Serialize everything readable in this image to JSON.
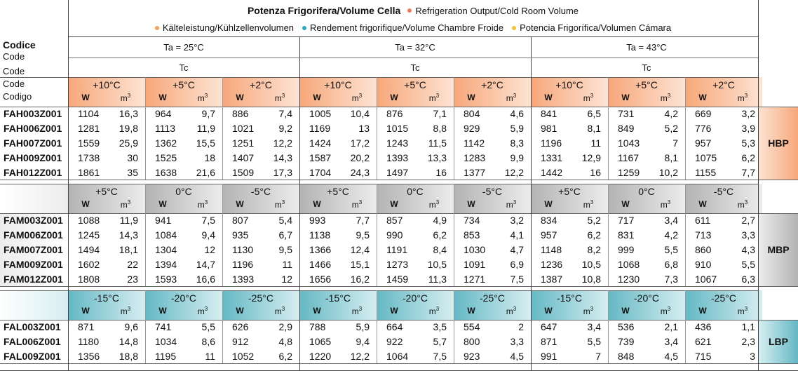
{
  "header": {
    "title": "Potenza Frigorifera/Volume Cella",
    "legend": [
      {
        "text": "Refrigeration Output/Cold Room Volume",
        "color": "#f07a5a"
      },
      {
        "text": "Kälteleistung/Kühlzellenvolumen",
        "color": "#f5a05a"
      },
      {
        "text": "Rendement frigorifique/Volume Chambre Froide",
        "color": "#2aa6c4"
      },
      {
        "text": "Potencia Frigorífica/Volumen Cámara",
        "color": "#f2c23a"
      }
    ],
    "code_labels": [
      "Codice",
      "Code",
      "Code",
      "Code",
      "Codigo"
    ],
    "ambient": [
      "Ta = 25°C",
      "Ta = 32°C",
      "Ta = 43°C"
    ],
    "tc": "Tc",
    "unit_w": "W",
    "unit_m": "m",
    "unit_m_sup": "3"
  },
  "colors": {
    "hbp_dark": "#f7a77a",
    "hbp_light": "#fde3d3",
    "mbp_dark": "#b3b3b3",
    "mbp_light": "#ececec",
    "lbp_dark": "#64b8c4",
    "lbp_light": "#d6eef1"
  },
  "sections": [
    {
      "name": "HBP",
      "temps": [
        "+10°C",
        "+5°C",
        "+2°C"
      ],
      "rows": [
        {
          "code": "FAH003Z001",
          "values": [
            "1104",
            "16,3",
            "964",
            "9,7",
            "886",
            "7,4",
            "1005",
            "10,4",
            "876",
            "7,1",
            "804",
            "4,6",
            "841",
            "6,5",
            "731",
            "4,2",
            "669",
            "3,2"
          ]
        },
        {
          "code": "FAH006Z001",
          "values": [
            "1281",
            "19,8",
            "1113",
            "11,9",
            "1021",
            "9,2",
            "1169",
            "13",
            "1015",
            "8,8",
            "929",
            "5,9",
            "981",
            "8,1",
            "849",
            "5,2",
            "776",
            "3,9"
          ]
        },
        {
          "code": "FAH007Z001",
          "values": [
            "1559",
            "25,9",
            "1362",
            "15,5",
            "1251",
            "12,2",
            "1424",
            "17,2",
            "1243",
            "11,5",
            "1142",
            "8,3",
            "1196",
            "11",
            "1043",
            "7",
            "957",
            "5,3"
          ]
        },
        {
          "code": "FAH009Z001",
          "values": [
            "1738",
            "30",
            "1525",
            "18",
            "1407",
            "14,3",
            "1587",
            "20,2",
            "1393",
            "13,3",
            "1283",
            "9,9",
            "1331",
            "12,9",
            "1167",
            "8,1",
            "1075",
            "6,2"
          ]
        },
        {
          "code": "FAH012Z001",
          "values": [
            "1861",
            "35",
            "1638",
            "21,6",
            "1509",
            "17,3",
            "1704",
            "24,3",
            "1497",
            "16",
            "1377",
            "12,2",
            "1442",
            "16",
            "1259",
            "10,2",
            "1155",
            "7,7"
          ]
        }
      ]
    },
    {
      "name": "MBP",
      "temps": [
        "+5°C",
        "0°C",
        "-5°C"
      ],
      "rows": [
        {
          "code": "FAM003Z001",
          "values": [
            "1088",
            "11,9",
            "941",
            "7,5",
            "807",
            "5,4",
            "993",
            "7,7",
            "857",
            "4,9",
            "734",
            "3,2",
            "834",
            "5,2",
            "717",
            "3,4",
            "611",
            "2,7"
          ]
        },
        {
          "code": "FAM006Z001",
          "values": [
            "1245",
            "14,3",
            "1084",
            "9,4",
            "935",
            "6,7",
            "1138",
            "9,5",
            "990",
            "6,2",
            "853",
            "4,1",
            "957",
            "6,2",
            "831",
            "4,2",
            "713",
            "3,3"
          ]
        },
        {
          "code": "FAM007Z001",
          "values": [
            "1494",
            "18,1",
            "1304",
            "12",
            "1130",
            "9,5",
            "1366",
            "12,4",
            "1191",
            "8,4",
            "1030",
            "4,7",
            "1148",
            "8,2",
            "999",
            "5,5",
            "860",
            "4,3"
          ]
        },
        {
          "code": "FAM009Z001",
          "values": [
            "1602",
            "22",
            "1394",
            "14,7",
            "1196",
            "11",
            "1466",
            "15,1",
            "1273",
            "10,5",
            "1091",
            "6,9",
            "1236",
            "10,5",
            "1068",
            "6,8",
            "910",
            "5,5"
          ]
        },
        {
          "code": "FAM012Z001",
          "values": [
            "1808",
            "23",
            "1593",
            "16,6",
            "1393",
            "12",
            "1656",
            "16,2",
            "1459",
            "11,3",
            "1271",
            "7,5",
            "1387",
            "10,8",
            "1230",
            "7,3",
            "1067",
            "6,3"
          ]
        }
      ]
    },
    {
      "name": "LBP",
      "temps": [
        "-15°C",
        "-20°C",
        "-25°C"
      ],
      "rows": [
        {
          "code": "FAL003Z001",
          "values": [
            "871",
            "9,6",
            "741",
            "5,5",
            "626",
            "2,9",
            "788",
            "5,9",
            "664",
            "3,5",
            "554",
            "2",
            "647",
            "3,4",
            "536",
            "2,1",
            "436",
            "1,1"
          ]
        },
        {
          "code": "FAL006Z001",
          "values": [
            "1180",
            "14,8",
            "1034",
            "8,6",
            "912",
            "4,8",
            "1065",
            "9,4",
            "922",
            "5,7",
            "800",
            "3,3",
            "871",
            "5,5",
            "739",
            "3,4",
            "621",
            "2,3"
          ]
        },
        {
          "code": "FAL009Z001",
          "values": [
            "1356",
            "18,8",
            "1195",
            "11",
            "1052",
            "6,2",
            "1220",
            "12,2",
            "1064",
            "7,5",
            "923",
            "4,5",
            "991",
            "7",
            "848",
            "4,5",
            "715",
            "3"
          ]
        }
      ]
    }
  ]
}
